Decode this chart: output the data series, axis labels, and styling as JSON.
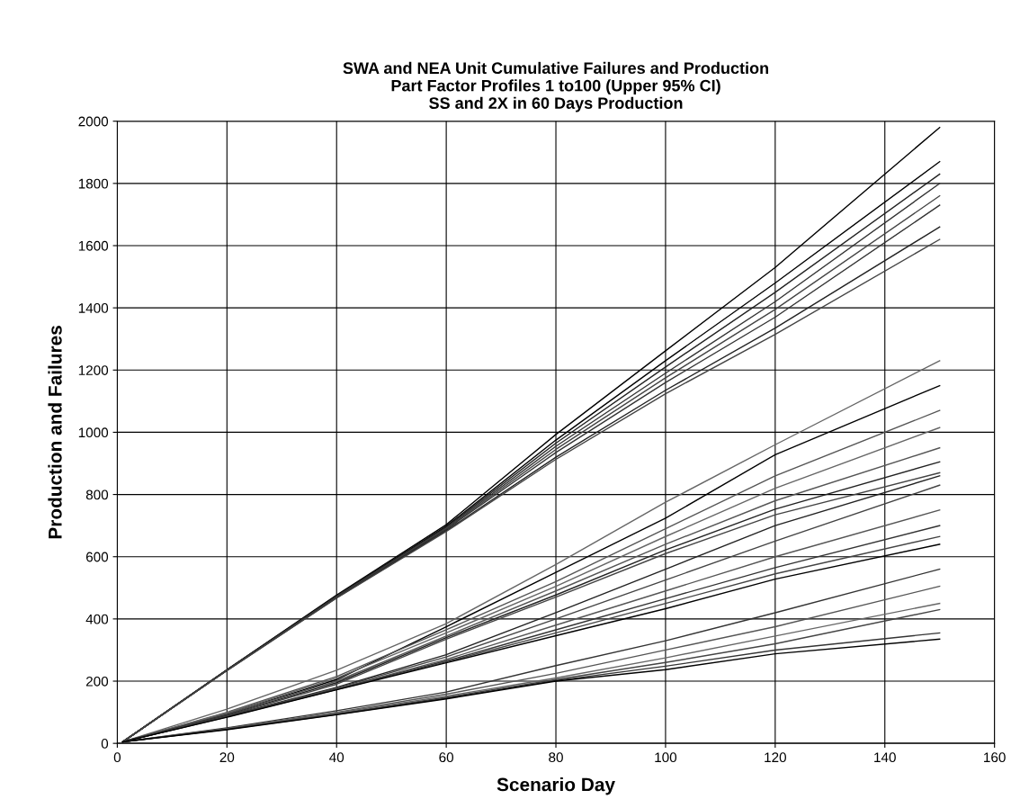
{
  "chart_data": {
    "type": "line",
    "title": "SWA and NEA Unit Cumulative Failures and Production\nPart Factor Profiles 1 to100 (Upper 95% CI)\nSS and 2X in 60 Days Production",
    "xlabel": "Scenario Day",
    "ylabel": "Production and Failures",
    "x": [
      1,
      20,
      40,
      60,
      80,
      100,
      120,
      150
    ],
    "xlim": [
      0,
      160
    ],
    "xticks": [
      0,
      20,
      40,
      60,
      80,
      100,
      120,
      140,
      160
    ],
    "ylim": [
      0,
      2000
    ],
    "yticks": [
      0,
      200,
      400,
      600,
      800,
      1000,
      1200,
      1400,
      1600,
      1800,
      2000
    ],
    "grid": true,
    "legend": false,
    "marker": "none",
    "line_style": "solid",
    "series": [
      {
        "color": "#000000",
        "values": [
          5,
          237,
          477,
          703,
          993,
          1262,
          1530,
          1980
        ]
      },
      {
        "color": "#000000",
        "values": [
          5,
          236,
          474,
          698,
          975,
          1230,
          1480,
          1870
        ]
      },
      {
        "color": "#222222",
        "values": [
          5,
          236,
          473,
          695,
          965,
          1210,
          1450,
          1830
        ]
      },
      {
        "color": "#333333",
        "values": [
          5,
          235,
          472,
          692,
          955,
          1190,
          1420,
          1800
        ]
      },
      {
        "color": "#444444",
        "values": [
          5,
          235,
          471,
          690,
          945,
          1175,
          1395,
          1760
        ]
      },
      {
        "color": "#333333",
        "values": [
          5,
          235,
          470,
          688,
          935,
          1160,
          1370,
          1730
        ]
      },
      {
        "color": "#222222",
        "values": [
          5,
          234,
          468,
          684,
          920,
          1135,
          1335,
          1660
        ]
      },
      {
        "color": "#444444",
        "values": [
          5,
          234,
          467,
          681,
          913,
          1124,
          1315,
          1620
        ]
      },
      {
        "color": "#666666",
        "values": [
          5,
          110,
          235,
          385,
          575,
          775,
          960,
          1230
        ]
      },
      {
        "color": "#000000",
        "values": [
          5,
          95,
          205,
          375,
          550,
          724,
          928,
          1150
        ]
      },
      {
        "color": "#555555",
        "values": [
          5,
          100,
          215,
          365,
          520,
          690,
          860,
          1070
        ]
      },
      {
        "color": "#666666",
        "values": [
          5,
          98,
          210,
          355,
          505,
          665,
          820,
          1015
        ]
      },
      {
        "color": "#555555",
        "values": [
          5,
          95,
          200,
          345,
          490,
          640,
          780,
          950
        ]
      },
      {
        "color": "#222222",
        "values": [
          5,
          92,
          195,
          340,
          477,
          622,
          753,
          905
        ]
      },
      {
        "color": "#444444",
        "values": [
          5,
          90,
          190,
          335,
          470,
          610,
          735,
          870
        ]
      },
      {
        "color": "#222222",
        "values": [
          5,
          88,
          180,
          285,
          420,
          560,
          700,
          860
        ]
      },
      {
        "color": "#444444",
        "values": [
          5,
          87,
          178,
          278,
          400,
          525,
          650,
          830
        ]
      },
      {
        "color": "#555555",
        "values": [
          5,
          86,
          175,
          270,
          380,
          490,
          600,
          750
        ]
      },
      {
        "color": "#333333",
        "values": [
          5,
          86,
          174,
          265,
          365,
          465,
          565,
          700
        ]
      },
      {
        "color": "#444444",
        "values": [
          5,
          85,
          173,
          262,
          355,
          450,
          545,
          665
        ]
      },
      {
        "color": "#000000",
        "values": [
          5,
          84,
          172,
          259,
          346,
          433,
          528,
          640
        ]
      },
      {
        "color": "#333333",
        "values": [
          5,
          50,
          105,
          165,
          250,
          330,
          420,
          560
        ]
      },
      {
        "color": "#555555",
        "values": [
          5,
          48,
          100,
          158,
          225,
          300,
          375,
          505
        ]
      },
      {
        "color": "#666666",
        "values": [
          5,
          47,
          98,
          152,
          210,
          275,
          345,
          450
        ]
      },
      {
        "color": "#444444",
        "values": [
          5,
          46,
          95,
          148,
          205,
          260,
          320,
          430
        ]
      },
      {
        "color": "#333333",
        "values": [
          5,
          45,
          93,
          145,
          202,
          248,
          300,
          355
        ]
      },
      {
        "color": "#000000",
        "values": [
          5,
          44,
          92,
          143,
          200,
          237,
          288,
          335
        ]
      }
    ]
  }
}
